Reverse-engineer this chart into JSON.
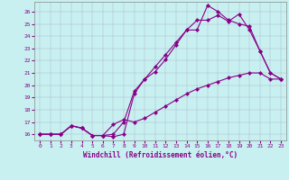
{
  "xlabel": "Windchill (Refroidissement éolien,°C)",
  "background_color": "#c8f0f0",
  "line_color": "#880088",
  "xlim": [
    -0.5,
    23.5
  ],
  "ylim": [
    15.5,
    26.8
  ],
  "xticks": [
    0,
    1,
    2,
    3,
    4,
    5,
    6,
    7,
    8,
    9,
    10,
    11,
    12,
    13,
    14,
    15,
    16,
    17,
    18,
    19,
    20,
    21,
    22,
    23
  ],
  "yticks": [
    16,
    17,
    18,
    19,
    20,
    21,
    22,
    23,
    24,
    25,
    26
  ],
  "line1_x": [
    0,
    1,
    2,
    3,
    4,
    5,
    6,
    7,
    8,
    9,
    10,
    11,
    12,
    13,
    14,
    15,
    16,
    17,
    18,
    19,
    20,
    21,
    22,
    23
  ],
  "line1_y": [
    16,
    16,
    16,
    16.7,
    16.5,
    15.9,
    15.9,
    15.8,
    16,
    19.3,
    20.5,
    21.1,
    22.1,
    23.3,
    24.5,
    24.5,
    26.5,
    26,
    25.3,
    25,
    24.8,
    22.8,
    21,
    20.5
  ],
  "line2_x": [
    0,
    1,
    2,
    3,
    4,
    5,
    6,
    7,
    8,
    9,
    10,
    11,
    12,
    13,
    14,
    15,
    16,
    17,
    18,
    19,
    20,
    21,
    22,
    23
  ],
  "line2_y": [
    16,
    16,
    16,
    16.7,
    16.5,
    15.9,
    15.9,
    16.8,
    17.2,
    17.0,
    17.3,
    17.8,
    18.3,
    18.8,
    19.3,
    19.7,
    20.0,
    20.3,
    20.6,
    20.8,
    21.0,
    21.0,
    20.5,
    20.5
  ],
  "line3_x": [
    0,
    1,
    2,
    3,
    4,
    5,
    6,
    7,
    8,
    9,
    10,
    11,
    12,
    13,
    14,
    15,
    16,
    17,
    18,
    19,
    20,
    21,
    22,
    23
  ],
  "line3_y": [
    16,
    16,
    16,
    16.7,
    16.5,
    15.9,
    15.9,
    16.0,
    17.0,
    19.5,
    20.5,
    21.5,
    22.5,
    23.5,
    24.5,
    25.3,
    25.3,
    25.7,
    25.2,
    25.8,
    24.5,
    22.8,
    21.0,
    20.5
  ]
}
